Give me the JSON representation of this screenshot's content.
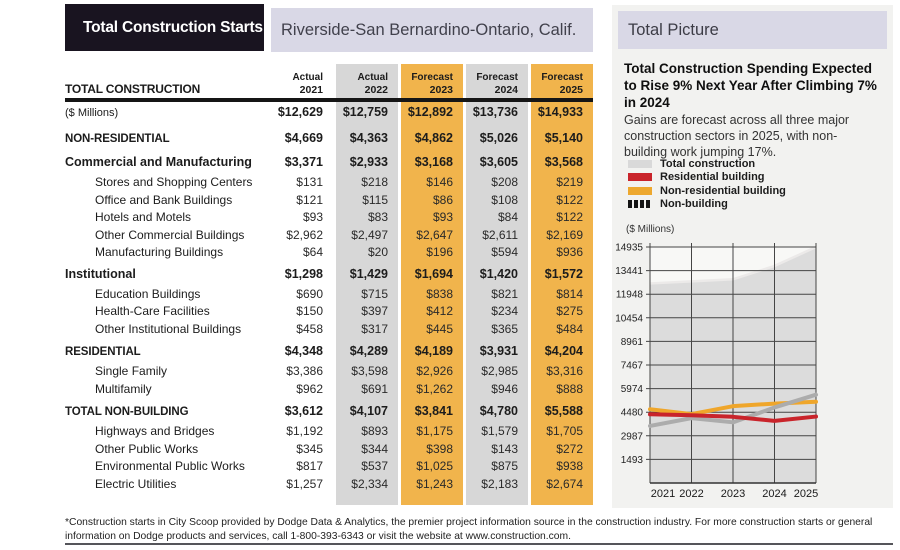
{
  "header": {
    "title": "Total Construction Starts",
    "region": "Riverside-San Bernardino-Ontario, Calif."
  },
  "colors": {
    "band_gray": "#d7d7d7",
    "band_orange": "#f1b44c",
    "accent_red": "#c9242b",
    "accent_orange": "#efa62b",
    "accent_silver": "#acacac",
    "area_gray": "#dcdcdc",
    "lavender": "#d9d8e6",
    "title_black": "#191420"
  },
  "table": {
    "corner_label": "TOTAL CONSTRUCTION",
    "columns": [
      {
        "period": "Actual",
        "year": "2021",
        "band": "none"
      },
      {
        "period": "Actual",
        "year": "2022",
        "band": "gray"
      },
      {
        "period": "Forecast",
        "year": "2023",
        "band": "orange"
      },
      {
        "period": "Forecast",
        "year": "2024",
        "band": "gray"
      },
      {
        "period": "Forecast",
        "year": "2025",
        "band": "orange"
      }
    ],
    "rows": [
      {
        "type": "unit",
        "label": "($ Millions)",
        "values": [
          "$12,629",
          "$12,759",
          "$12,892",
          "$13,736",
          "$14,933"
        ]
      },
      {
        "type": "section",
        "label": "NON-RESIDENTIAL",
        "values": [
          "$4,669",
          "$4,363",
          "$4,862",
          "$5,026",
          "$5,140"
        ]
      },
      {
        "type": "subsection",
        "label": "Commercial and Manufacturing",
        "values": [
          "$3,371",
          "$2,933",
          "$3,168",
          "$3,605",
          "$3,568"
        ]
      },
      {
        "type": "item",
        "label": "Stores and Shopping Centers",
        "values": [
          "$131",
          "$218",
          "$146",
          "$208",
          "$219"
        ]
      },
      {
        "type": "item",
        "label": "Office and Bank Buildings",
        "values": [
          "$121",
          "$115",
          "$86",
          "$108",
          "$122"
        ]
      },
      {
        "type": "item",
        "label": "Hotels and Motels",
        "values": [
          "$93",
          "$83",
          "$93",
          "$84",
          "$122"
        ]
      },
      {
        "type": "item",
        "label": "Other Commercial Buildings",
        "values": [
          "$2,962",
          "$2,497",
          "$2,647",
          "$2,611",
          "$2,169"
        ]
      },
      {
        "type": "item",
        "label": "Manufacturing Buildings",
        "values": [
          "$64",
          "$20",
          "$196",
          "$594",
          "$936"
        ]
      },
      {
        "type": "subsection",
        "label": "Institutional",
        "values": [
          "$1,298",
          "$1,429",
          "$1,694",
          "$1,420",
          "$1,572"
        ]
      },
      {
        "type": "item",
        "label": "Education Buildings",
        "values": [
          "$690",
          "$715",
          "$838",
          "$821",
          "$814"
        ]
      },
      {
        "type": "item",
        "label": "Health-Care Facilities",
        "values": [
          "$150",
          "$397",
          "$412",
          "$234",
          "$275"
        ]
      },
      {
        "type": "item",
        "label": "Other Institutional Buildings",
        "values": [
          "$458",
          "$317",
          "$445",
          "$365",
          "$484"
        ]
      },
      {
        "type": "section",
        "label": "RESIDENTIAL",
        "values": [
          "$4,348",
          "$4,289",
          "$4,189",
          "$3,931",
          "$4,204"
        ]
      },
      {
        "type": "item",
        "label": "Single Family",
        "values": [
          "$3,386",
          "$3,598",
          "$2,926",
          "$2,985",
          "$3,316"
        ]
      },
      {
        "type": "item",
        "label": "Multifamily",
        "values": [
          "$962",
          "$691",
          "$1,262",
          "$946",
          "$888"
        ]
      },
      {
        "type": "section",
        "label": "TOTAL NON-BUILDING",
        "values": [
          "$3,612",
          "$4,107",
          "$3,841",
          "$4,780",
          "$5,588"
        ]
      },
      {
        "type": "item",
        "label": "Highways and Bridges",
        "values": [
          "$1,192",
          "$893",
          "$1,175",
          "$1,579",
          "$1,705"
        ]
      },
      {
        "type": "item",
        "label": "Other Public Works",
        "values": [
          "$345",
          "$344",
          "$398",
          "$143",
          "$272"
        ]
      },
      {
        "type": "item",
        "label": "Environmental Public Works",
        "values": [
          "$817",
          "$537",
          "$1,025",
          "$875",
          "$938"
        ]
      },
      {
        "type": "item",
        "label": "Electric Utilities",
        "values": [
          "$1,257",
          "$2,334",
          "$1,243",
          "$2,183",
          "$2,674"
        ]
      }
    ]
  },
  "sidebar": {
    "panel_title": "Total Picture",
    "headline": "Total Construction Spending Expected to Rise 9% Next Year After Climbing 7% in 2024",
    "body": "Gains are forecast across all three major construction sectors in 2025, with non-building work jumping 17%.",
    "legend": [
      {
        "label": "Total construction",
        "color": "#d9d9d9",
        "style": "solid"
      },
      {
        "label": "Residential building",
        "color": "#c9242b",
        "style": "solid"
      },
      {
        "label": "Non-residential building",
        "color": "#eda82f",
        "style": "solid"
      },
      {
        "label": "Non-building",
        "color": "#141414",
        "style": "dashed"
      }
    ],
    "units_label": "($ Millions)"
  },
  "chart_data": {
    "type": "area",
    "x": [
      2021,
      2022,
      2023,
      2024,
      2025
    ],
    "series": [
      {
        "name": "Total construction",
        "kind": "area",
        "color": "#dcdcdc",
        "values": [
          12629,
          12759,
          12892,
          13736,
          14933
        ]
      },
      {
        "name": "Non-residential building",
        "kind": "line",
        "color": "#efa62b",
        "values": [
          4669,
          4363,
          4862,
          5026,
          5140
        ]
      },
      {
        "name": "Non-building",
        "kind": "line",
        "color": "#acacac",
        "values": [
          3612,
          4107,
          3841,
          4780,
          5588
        ]
      },
      {
        "name": "Residential building",
        "kind": "line",
        "color": "#c9242b",
        "values": [
          4348,
          4289,
          4189,
          3931,
          4204
        ]
      }
    ],
    "ylabel": "($ Millions)",
    "yticks": [
      1493,
      2987,
      4480,
      5974,
      7467,
      8961,
      10454,
      11948,
      13441,
      14935
    ],
    "ylim": [
      0,
      14935
    ],
    "xticklabels": [
      "2021",
      "2022",
      "2023",
      "2024",
      "2025"
    ],
    "grid": true,
    "legend_position": "above"
  },
  "footnote": {
    "text": "*Construction starts in City Scoop provided by Dodge Data & Analytics, the premier project information source in the construction industry. For more construction starts or general information on Dodge products and services, call 1-800-393-6343 or visit the website at www.construction.com."
  }
}
